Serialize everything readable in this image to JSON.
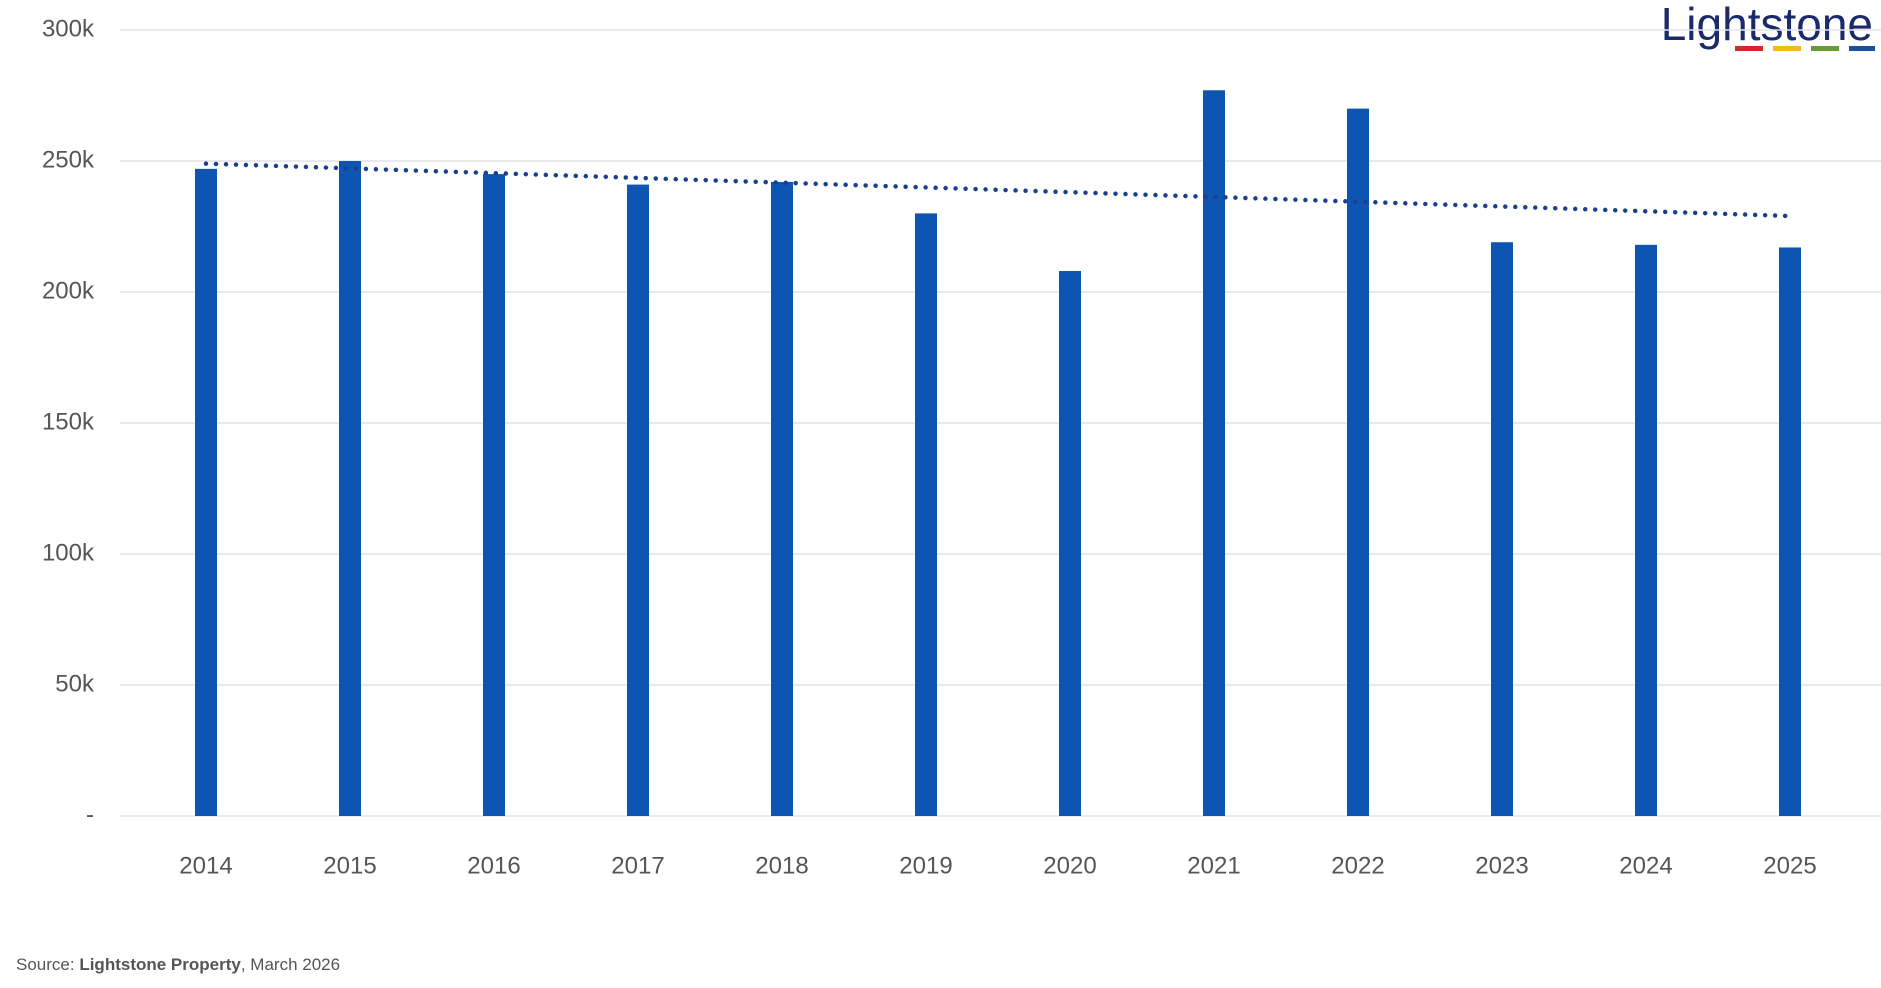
{
  "chart_data": {
    "type": "bar",
    "categories": [
      "2014",
      "2015",
      "2016",
      "2017",
      "2018",
      "2019",
      "2020",
      "2021",
      "2022",
      "2023",
      "2024",
      "2025"
    ],
    "values": [
      247000,
      250000,
      245000,
      241000,
      242000,
      230000,
      208000,
      277000,
      270000,
      219000,
      218000,
      217000
    ],
    "color": "#0d55b0",
    "trendline": {
      "x": [
        "2014",
        "2025"
      ],
      "values": [
        249000,
        229000
      ],
      "color": "#1a3f8f"
    },
    "ylim": [
      0,
      300000
    ],
    "yticks": [
      {
        "value": 0,
        "label": "-"
      },
      {
        "value": 50000,
        "label": "50k"
      },
      {
        "value": 100000,
        "label": "100k"
      },
      {
        "value": 150000,
        "label": "150k"
      },
      {
        "value": 200000,
        "label": "200k"
      },
      {
        "value": 250000,
        "label": "250k"
      },
      {
        "value": 300000,
        "label": "300k"
      }
    ],
    "grid": true,
    "logo": "Lightstone",
    "source": {
      "prefix": "Source:",
      "name": "Lightstone Property",
      "suffix": ", March 2026"
    }
  }
}
